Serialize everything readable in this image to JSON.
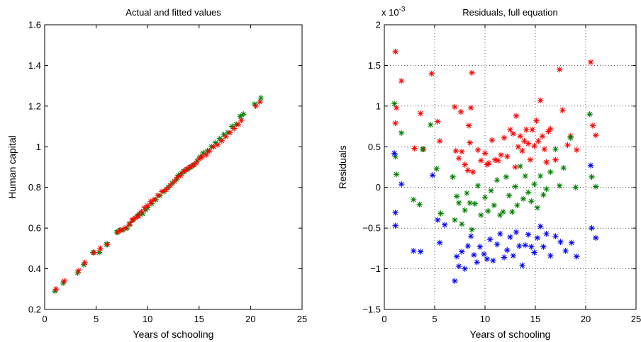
{
  "chart_data": [
    {
      "type": "scatter",
      "title": "Actual and fitted values",
      "xlabel": "Years of schooling",
      "ylabel": "Human capital",
      "xlim": [
        0,
        25
      ],
      "ylim": [
        0.2,
        1.6
      ],
      "xticks": [
        0,
        5,
        10,
        15,
        20,
        25
      ],
      "yticks": [
        0.2,
        0.4,
        0.6,
        0.8,
        1.0,
        1.2,
        1.4,
        1.6
      ],
      "ytick_labels": [
        "0.2",
        "0.4",
        "0.6",
        "0.8",
        "1",
        "1.2",
        "1.4",
        "1.6"
      ],
      "grid": false,
      "marker": "asterisk",
      "series": [
        {
          "color": "#007f00",
          "x": [
            1.0,
            1.8,
            3.2,
            3.8,
            4.7,
            5.3,
            6.0,
            7.0,
            7.3,
            7.6,
            8.0,
            8.3,
            8.6,
            9.0,
            9.2,
            9.5,
            9.8,
            10.0,
            10.4,
            10.8,
            11.2,
            11.6,
            12.0,
            12.4,
            12.8,
            13.0,
            13.3,
            13.6,
            13.9,
            14.2,
            14.5,
            14.8,
            15.1,
            15.4,
            15.8,
            16.2,
            16.6,
            17.0,
            17.4,
            17.8,
            18.2,
            18.6,
            19.0,
            19.3,
            20.4,
            21.0
          ],
          "y": [
            0.29,
            0.33,
            0.38,
            0.42,
            0.48,
            0.48,
            0.52,
            0.58,
            0.59,
            0.59,
            0.6,
            0.62,
            0.64,
            0.66,
            0.67,
            0.67,
            0.69,
            0.7,
            0.72,
            0.74,
            0.76,
            0.78,
            0.8,
            0.82,
            0.84,
            0.86,
            0.87,
            0.88,
            0.89,
            0.9,
            0.91,
            0.93,
            0.95,
            0.97,
            0.98,
            1.0,
            1.02,
            1.04,
            1.06,
            1.07,
            1.1,
            1.11,
            1.15,
            1.16,
            1.21,
            1.24
          ]
        },
        {
          "color": "#ff0000",
          "x": [
            1.1,
            1.9,
            3.3,
            3.9,
            4.8,
            5.4,
            6.1,
            7.1,
            7.4,
            7.8,
            8.2,
            8.5,
            8.8,
            9.1,
            9.4,
            9.7,
            10.0,
            10.3,
            10.6,
            11.0,
            11.4,
            11.8,
            12.2,
            12.6,
            12.9,
            13.2,
            13.5,
            13.8,
            14.1,
            14.4,
            14.7,
            15.0,
            15.3,
            15.7,
            16.0,
            16.4,
            16.8,
            17.2,
            17.6,
            18.0,
            18.4,
            18.8,
            19.1,
            20.5,
            20.9
          ],
          "y": [
            0.3,
            0.34,
            0.39,
            0.43,
            0.48,
            0.5,
            0.52,
            0.58,
            0.59,
            0.6,
            0.62,
            0.64,
            0.65,
            0.66,
            0.68,
            0.7,
            0.71,
            0.73,
            0.74,
            0.76,
            0.78,
            0.79,
            0.81,
            0.83,
            0.85,
            0.86,
            0.88,
            0.89,
            0.9,
            0.91,
            0.92,
            0.94,
            0.95,
            0.96,
            0.98,
            1.0,
            1.01,
            1.03,
            1.05,
            1.07,
            1.09,
            1.11,
            1.13,
            1.2,
            1.22
          ]
        }
      ]
    },
    {
      "type": "scatter",
      "title": "Residuals, full equation",
      "xlabel": "Years of schooling",
      "ylabel": "Residuals",
      "exponent_label": "x 10",
      "exponent_power": "-3",
      "xlim": [
        0,
        25
      ],
      "ylim": [
        -1.5,
        2
      ],
      "xticks": [
        0,
        5,
        10,
        15,
        20,
        25
      ],
      "yticks": [
        -1.5,
        -1,
        -0.5,
        0,
        0.5,
        1,
        1.5,
        2
      ],
      "ytick_labels": [
        "−1.5",
        "−1",
        "−0.5",
        "0",
        "0.5",
        "1",
        "1.5",
        "2"
      ],
      "grid": true,
      "marker": "asterisk",
      "series": [
        {
          "color": "#ff0000",
          "x": [
            1.1,
            1.7,
            1.2,
            1.1,
            3.0,
            3.6,
            3.9,
            4.7,
            5.3,
            5.5,
            7.0,
            7.1,
            7.4,
            7.6,
            7.7,
            8.0,
            8.3,
            8.4,
            8.6,
            8.7,
            8.5,
            8.8,
            9.3,
            9.6,
            10.0,
            10.2,
            10.4,
            10.7,
            11.0,
            11.3,
            11.6,
            11.9,
            12.2,
            12.5,
            12.8,
            13.0,
            13.1,
            13.3,
            13.5,
            13.7,
            13.9,
            14.1,
            14.3,
            14.5,
            14.7,
            14.9,
            15.1,
            15.3,
            15.5,
            15.7,
            15.9,
            16.1,
            16.3,
            16.5,
            17.0,
            17.4,
            17.7,
            18.2,
            18.5,
            19.1,
            20.5,
            20.7,
            21.0
          ],
          "y": [
            1.67,
            1.31,
            0.98,
            0.79,
            0.48,
            0.91,
            0.47,
            1.4,
            0.81,
            0.57,
            0.99,
            0.45,
            0.36,
            0.93,
            0.44,
            0.28,
            0.21,
            0.76,
            0.98,
            1.41,
            0.55,
            0.19,
            0.46,
            0.33,
            0.42,
            0.28,
            0.3,
            0.58,
            0.34,
            0.33,
            0.4,
            0.61,
            0.38,
            0.71,
            0.66,
            0.25,
            0.88,
            0.5,
            0.63,
            0.45,
            0.57,
            0.71,
            0.54,
            0.34,
            0.71,
            0.51,
            0.82,
            0.57,
            1.07,
            0.63,
            0.47,
            0.31,
            0.69,
            0.72,
            0.34,
            1.45,
            0.95,
            0.52,
            0.63,
            0.46,
            1.54,
            0.76,
            0.64
          ]
        },
        {
          "color": "#007f00",
          "x": [
            1.0,
            1.1,
            1.2,
            1.7,
            2.9,
            3.5,
            3.8,
            4.6,
            5.2,
            5.6,
            6.8,
            7.0,
            7.2,
            7.4,
            7.7,
            8.0,
            8.2,
            8.5,
            8.7,
            9.0,
            9.3,
            9.6,
            10.0,
            10.3,
            10.6,
            10.9,
            11.2,
            11.5,
            11.8,
            12.1,
            12.4,
            12.7,
            13.0,
            13.2,
            13.5,
            13.8,
            14.0,
            14.3,
            14.6,
            14.9,
            15.2,
            15.5,
            15.8,
            16.1,
            16.5,
            17.0,
            17.4,
            17.8,
            18.5,
            19.0,
            20.4,
            20.6,
            21.0
          ],
          "y": [
            1.03,
            0.38,
            0.16,
            0.67,
            -0.15,
            -0.21,
            0.47,
            0.77,
            0.23,
            -0.32,
            0.13,
            -0.4,
            -0.11,
            -0.19,
            -0.45,
            -0.28,
            -0.07,
            -0.19,
            -0.52,
            -0.2,
            0.02,
            -0.34,
            -0.12,
            -0.29,
            -0.04,
            -0.22,
            0.09,
            -0.34,
            -0.3,
            0.13,
            -0.1,
            -0.3,
            0.01,
            -0.22,
            0.26,
            -0.14,
            0.14,
            -0.06,
            -0.17,
            0.04,
            -0.25,
            0.14,
            -0.09,
            -0.02,
            0.19,
            0.47,
            0.02,
            0.24,
            0.61,
            0.0,
            0.9,
            0.13,
            0.01
          ]
        },
        {
          "color": "#0000ff",
          "x": [
            1.0,
            1.1,
            1.1,
            1.7,
            2.9,
            3.6,
            4.8,
            5.3,
            5.5,
            6.0,
            7.0,
            7.2,
            7.4,
            7.7,
            8.0,
            8.3,
            8.6,
            8.9,
            9.2,
            9.5,
            9.9,
            10.2,
            10.5,
            10.8,
            11.2,
            11.5,
            11.9,
            12.2,
            12.5,
            12.8,
            13.1,
            13.4,
            13.7,
            14.0,
            14.3,
            14.6,
            14.9,
            15.2,
            15.5,
            15.8,
            16.1,
            16.5,
            17.0,
            17.5,
            18.0,
            18.6,
            19.1,
            20.5,
            20.6,
            21.0
          ],
          "y": [
            0.42,
            -0.31,
            -0.47,
            0.04,
            -0.78,
            -0.79,
            0.15,
            -0.4,
            -0.68,
            -0.46,
            -1.15,
            -0.85,
            -0.97,
            -0.79,
            -1.0,
            -0.72,
            -0.6,
            -0.83,
            -0.92,
            -0.73,
            -0.82,
            -0.88,
            -0.64,
            -0.9,
            -0.7,
            -0.57,
            -0.86,
            -0.77,
            -0.61,
            -0.84,
            -0.55,
            -0.72,
            -0.96,
            -0.71,
            -0.58,
            -0.73,
            -0.8,
            -0.62,
            -0.48,
            -0.73,
            -0.57,
            -0.84,
            -0.6,
            -0.67,
            -0.78,
            -0.68,
            -0.85,
            0.27,
            -0.5,
            -0.62
          ]
        }
      ]
    }
  ]
}
